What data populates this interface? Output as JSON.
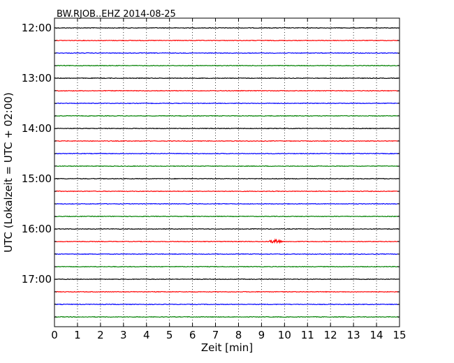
{
  "chart_data": {
    "type": "line",
    "title": "BW.RJOB..EHZ 2014-08-25",
    "xlabel": "Zeit  [min]",
    "ylabel": "UTC (Lokalzeit = UTC + 02:00)",
    "xlim": [
      0,
      15
    ],
    "x_ticks": [
      "0",
      "1",
      "2",
      "3",
      "4",
      "5",
      "6",
      "7",
      "8",
      "9",
      "10",
      "11",
      "12",
      "13",
      "14",
      "15"
    ],
    "y_ticks": [
      "12:00",
      "13:00",
      "14:00",
      "15:00",
      "16:00",
      "17:00"
    ],
    "grid": "dotted-vertical",
    "legend": "none",
    "trace_interval_minutes": 15,
    "trace_colors": [
      "#000000",
      "#ff0000",
      "#0000ff",
      "#008000"
    ],
    "traces": [
      {
        "start": "12:00"
      },
      {
        "start": "12:15"
      },
      {
        "start": "12:30"
      },
      {
        "start": "12:45"
      },
      {
        "start": "13:00"
      },
      {
        "start": "13:15"
      },
      {
        "start": "13:30"
      },
      {
        "start": "13:45"
      },
      {
        "start": "14:00"
      },
      {
        "start": "14:15"
      },
      {
        "start": "14:30"
      },
      {
        "start": "14:45"
      },
      {
        "start": "15:00"
      },
      {
        "start": "15:15"
      },
      {
        "start": "15:30"
      },
      {
        "start": "15:45"
      },
      {
        "start": "16:00"
      },
      {
        "start": "16:15"
      },
      {
        "start": "16:30"
      },
      {
        "start": "16:45"
      },
      {
        "start": "17:00"
      },
      {
        "start": "17:15"
      },
      {
        "start": "17:30"
      },
      {
        "start": "17:45"
      }
    ],
    "events": [
      {
        "trace_start": "16:15",
        "x_min": 9.6,
        "label": ""
      }
    ]
  }
}
